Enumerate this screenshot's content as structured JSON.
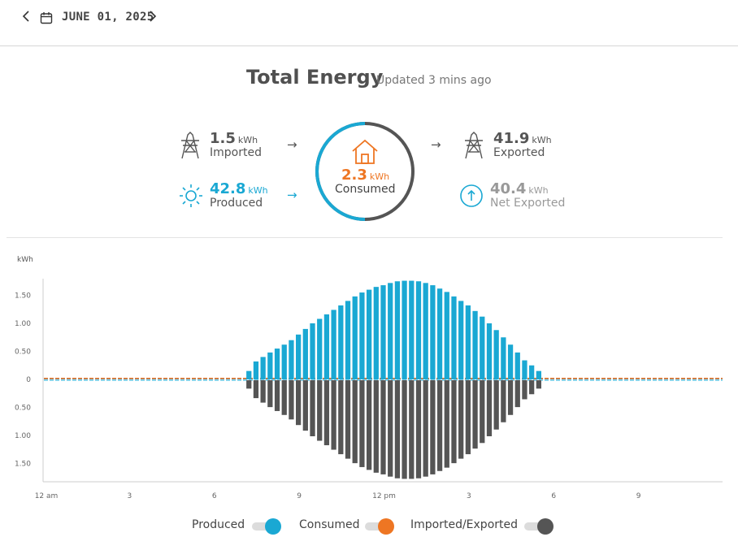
{
  "date_nav": {
    "date": "JUNE 01, 2025",
    "prev_icon": "chevron-left",
    "next_icon": "chevron-right",
    "calendar_icon": "calendar"
  },
  "summary": {
    "title": "Total Energy",
    "updated": "Updated 3 mins ago",
    "imported": {
      "value": "1.5",
      "unit": "kWh",
      "label": "Imported",
      "icon": "power-tower"
    },
    "produced": {
      "value": "42.8",
      "unit": "kWh",
      "label": "Produced",
      "icon": "sun"
    },
    "consumed": {
      "value": "2.3",
      "unit": "kWh",
      "label": "Consumed",
      "icon": "house"
    },
    "exported": {
      "value": "41.9",
      "unit": "kWh",
      "label": "Exported",
      "icon": "power-tower"
    },
    "net_exported": {
      "value": "40.4",
      "unit": "kWh",
      "label": "Net Exported",
      "icon": "up-arrow-circle"
    },
    "ring_produced_fraction": 0.5
  },
  "colors": {
    "produced": "#1aa8d3",
    "consumed": "#ee7623",
    "grid": "#555555",
    "text": "#444444"
  },
  "legend": {
    "produced": "Produced",
    "consumed": "Consumed",
    "imported_exported": "Imported/Exported"
  },
  "chart_data": {
    "type": "bar",
    "ylabel": "kWh",
    "x_tick_labels": [
      "12 am",
      "3",
      "6",
      "9",
      "12 pm",
      "3",
      "6",
      "9"
    ],
    "y_tick_labels": [
      "1.50",
      "1.00",
      "0.50",
      "0",
      "0.50",
      "1.00",
      "1.50"
    ],
    "ylim": [
      -1.8,
      1.8
    ],
    "x_range_hours": [
      0,
      24
    ],
    "interval_hours": 0.25,
    "series": [
      {
        "name": "Produced",
        "start_hour": 7.25,
        "values": [
          0.15,
          0.32,
          0.4,
          0.48,
          0.55,
          0.62,
          0.7,
          0.8,
          0.9,
          1.0,
          1.08,
          1.16,
          1.24,
          1.32,
          1.4,
          1.48,
          1.55,
          1.6,
          1.65,
          1.68,
          1.72,
          1.75,
          1.76,
          1.76,
          1.75,
          1.72,
          1.68,
          1.62,
          1.56,
          1.48,
          1.4,
          1.32,
          1.22,
          1.12,
          1.0,
          0.88,
          0.75,
          0.62,
          0.48,
          0.34,
          0.25,
          0.15
        ]
      },
      {
        "name": "Imported/Exported",
        "start_hour": 7.25,
        "values": [
          -0.15,
          -0.32,
          -0.4,
          -0.48,
          -0.55,
          -0.62,
          -0.7,
          -0.8,
          -0.9,
          -1.0,
          -1.08,
          -1.16,
          -1.24,
          -1.32,
          -1.4,
          -1.48,
          -1.55,
          -1.6,
          -1.65,
          -1.68,
          -1.72,
          -1.75,
          -1.76,
          -1.76,
          -1.75,
          -1.72,
          -1.68,
          -1.62,
          -1.56,
          -1.48,
          -1.4,
          -1.32,
          -1.22,
          -1.12,
          -1.0,
          -0.88,
          -0.75,
          -0.62,
          -0.48,
          -0.34,
          -0.25,
          -0.15
        ]
      },
      {
        "name": "Consumed",
        "baseline_value": 0.02
      }
    ]
  }
}
